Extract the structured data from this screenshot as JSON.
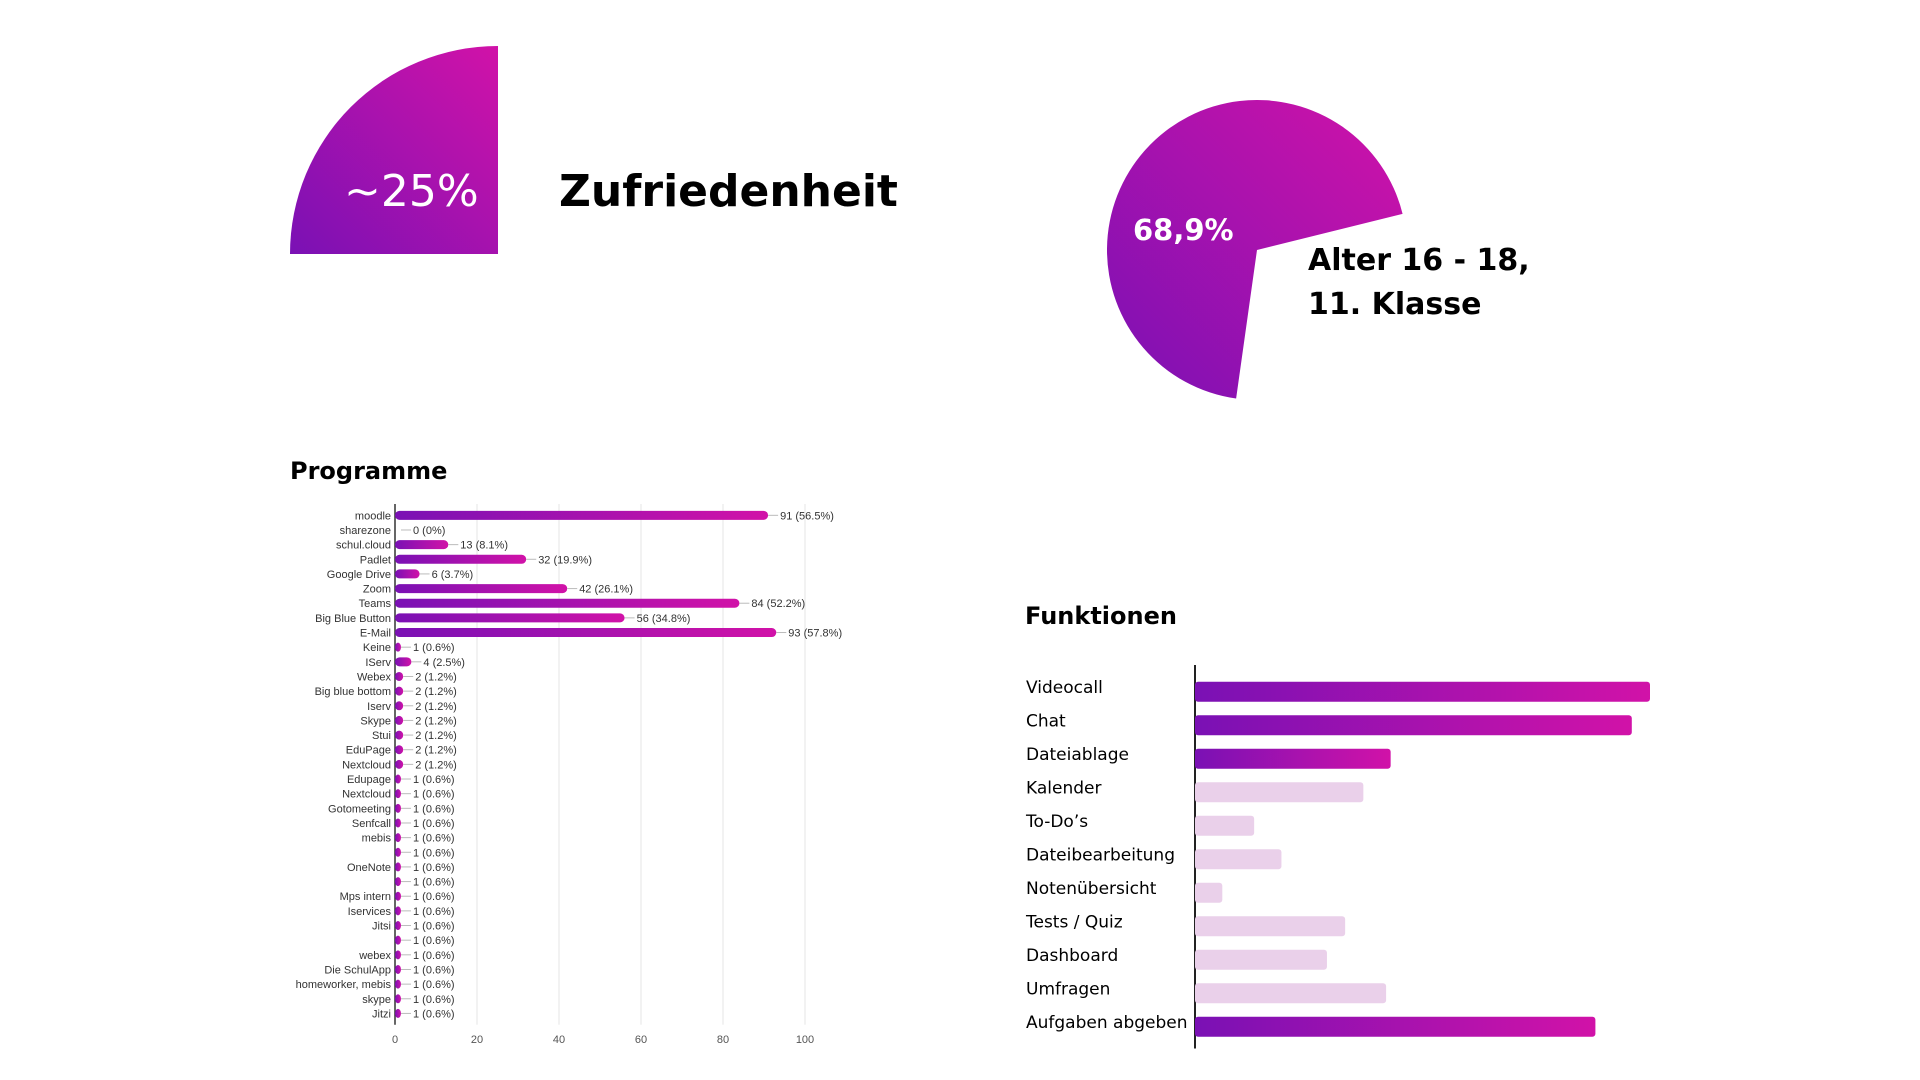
{
  "colors": {
    "gradient_start": "#7a11b4",
    "gradient_end": "#d112a8",
    "faint_bar": "#ead0ea",
    "axis_text": "#555555",
    "label_text": "#333333"
  },
  "satisfaction": {
    "percent_label": "~25%",
    "title": "Zufriedenheit",
    "slice_fraction": 0.25
  },
  "age": {
    "percent_label": "68,9%",
    "title_line1": "Alter 16 - 18,",
    "title_line2": "11. Klasse",
    "slice_fraction": 0.689
  },
  "programme": {
    "title": "Programme",
    "chart_data": {
      "type": "bar",
      "orientation": "horizontal",
      "title": "Programme",
      "xlim": [
        0,
        100
      ],
      "x_ticks": [
        "0",
        "20",
        "40",
        "60",
        "80",
        "100"
      ],
      "categories": [
        "moodle",
        "sharezone",
        "schul.cloud",
        "Padlet",
        "Google Drive",
        "Zoom",
        "Teams",
        "Big Blue Button",
        "E-Mail",
        "Keine",
        "IServ",
        "Webex",
        "Big blue bottom",
        "Iserv",
        "Skype",
        "Stui",
        "EduPage",
        "Nextcloud",
        "Edupage",
        "Nextcloud",
        "Gotomeeting",
        "Senfcall",
        "mebis",
        "",
        "OneNote",
        "",
        "Mps intern",
        "Iservices",
        "Jitsi",
        "",
        "webex",
        "Die SchulApp",
        "homeworker, mebis",
        "skype",
        "Jitzi"
      ],
      "values": [
        91,
        0,
        13,
        32,
        6,
        42,
        84,
        56,
        93,
        1,
        4,
        2,
        2,
        2,
        2,
        2,
        2,
        2,
        1,
        1,
        1,
        1,
        1,
        1,
        1,
        1,
        1,
        1,
        1,
        1,
        1,
        1,
        1,
        1,
        1
      ],
      "value_labels": [
        "91 (56.5%)",
        "0 (0%)",
        "13 (8.1%)",
        "32 (19.9%)",
        "6 (3.7%)",
        "42 (26.1%)",
        "84 (52.2%)",
        "56 (34.8%)",
        "93 (57.8%)",
        "1 (0.6%)",
        "4 (2.5%)",
        "2 (1.2%)",
        "2 (1.2%)",
        "2 (1.2%)",
        "2 (1.2%)",
        "2 (1.2%)",
        "2 (1.2%)",
        "2 (1.2%)",
        "1 (0.6%)",
        "1 (0.6%)",
        "1 (0.6%)",
        "1 (0.6%)",
        "1 (0.6%)",
        "1 (0.6%)",
        "1 (0.6%)",
        "1 (0.6%)",
        "1 (0.6%)",
        "1 (0.6%)",
        "1 (0.6%)",
        "1 (0.6%)",
        "1 (0.6%)",
        "1 (0.6%)",
        "1 (0.6%)",
        "1 (0.6%)",
        "1 (0.6%)"
      ],
      "grid": true
    }
  },
  "funktionen": {
    "title": "Funktionen",
    "chart_data": {
      "type": "bar",
      "orientation": "horizontal",
      "title": "Funktionen",
      "categories": [
        "Videocall",
        "Chat",
        "Dateiablage",
        "Kalender",
        "To-Do’s",
        "Dateibearbeitung",
        "Notenübersicht",
        "Tests / Quiz",
        "Dashboard",
        "Umfragen",
        "Aufgaben abgeben"
      ],
      "values": [
        100,
        96,
        43,
        37,
        13,
        19,
        6,
        33,
        29,
        42,
        88
      ],
      "highlighted": [
        true,
        true,
        true,
        false,
        false,
        false,
        false,
        false,
        false,
        false,
        true
      ],
      "xlim": [
        0,
        100
      ],
      "grid": false
    }
  }
}
